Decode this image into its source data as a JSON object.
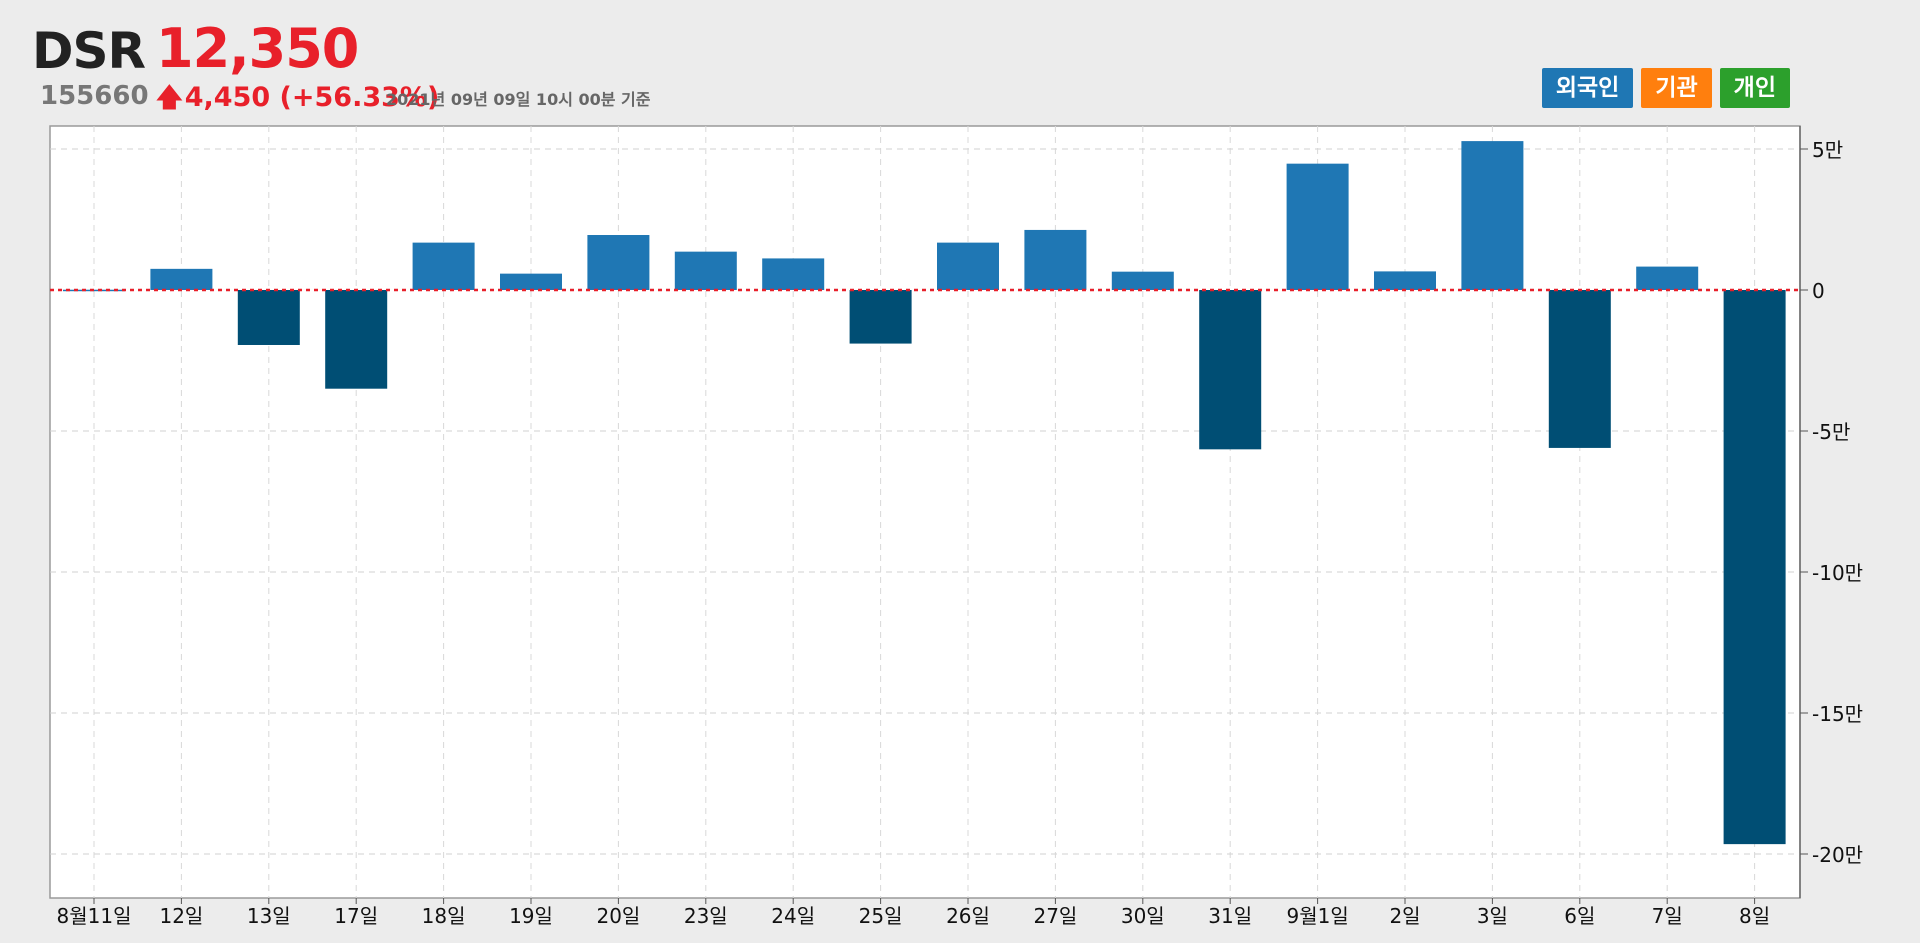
{
  "header": {
    "name": "DSR",
    "code": "155660",
    "price": "12,350",
    "change": "4,450 (+56.33%)",
    "timestamp": "2021년 09년 09일 10시 00분 기준"
  },
  "legend": [
    {
      "label": "외국인",
      "color": "#1f77b4"
    },
    {
      "label": "기관",
      "color": "#ff7f0e"
    },
    {
      "label": "개인",
      "color": "#2ca02c"
    }
  ],
  "colors": {
    "positive": "#1f77b4",
    "negative": "#004e74",
    "zero_line": "#e8202a",
    "price": "#e8202a"
  },
  "chart_data": {
    "type": "bar",
    "categories": [
      "8월11일",
      "12일",
      "13일",
      "17일",
      "18일",
      "19일",
      "20일",
      "23일",
      "24일",
      "25일",
      "26일",
      "27일",
      "30일",
      "31일",
      "9월1일",
      "2일",
      "3일",
      "6일",
      "7일",
      "8일"
    ],
    "series": [
      {
        "values": [
          100,
          7500,
          -19500,
          -35000,
          16800,
          5800,
          19500,
          13600,
          11200,
          -19000,
          16800,
          21300,
          6500,
          -56500,
          44800,
          6600,
          52800,
          -56000,
          8300,
          -196500
        ]
      }
    ],
    "yticks": [
      50000,
      0,
      -50000,
      -100000,
      -150000,
      -200000
    ],
    "ytick_labels": [
      "5만",
      "0",
      "-5만",
      "-10만",
      "-15만",
      "-20만"
    ],
    "ylim": [
      -215000,
      58000
    ],
    "grid": true,
    "legend_position": "top-right"
  }
}
